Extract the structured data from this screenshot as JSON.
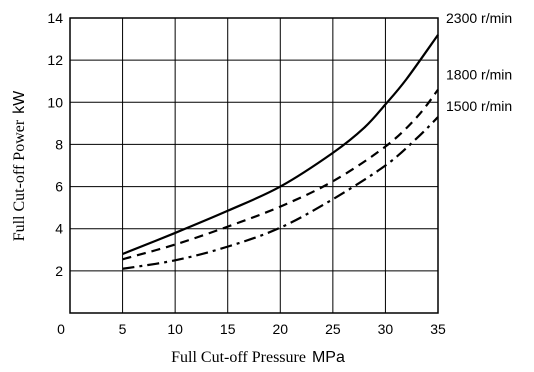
{
  "chart_data": {
    "type": "line",
    "title": "",
    "xlabel": "Full Cut-off  Pressure",
    "xlabel_unit": "MPa",
    "ylabel": "Full Cut-off Power",
    "ylabel_unit": "kW",
    "xlim": [
      0,
      35
    ],
    "ylim": [
      0,
      14
    ],
    "x_ticks": [
      0,
      5,
      10,
      15,
      20,
      25,
      30,
      35
    ],
    "y_ticks": [
      2,
      4,
      6,
      8,
      10,
      12,
      14
    ],
    "grid": true,
    "legend": "right-end-labels",
    "series": [
      {
        "name": "2300 r/min",
        "style": "solid",
        "x": [
          5,
          10,
          15,
          20,
          25,
          28,
          30,
          32,
          35
        ],
        "y": [
          2.8,
          3.8,
          4.85,
          6.0,
          7.6,
          8.8,
          9.9,
          11.1,
          13.2
        ]
      },
      {
        "name": "1800 r/min",
        "style": "dashed",
        "x": [
          5,
          10,
          15,
          20,
          25,
          30,
          33,
          35
        ],
        "y": [
          2.55,
          3.25,
          4.1,
          5.05,
          6.25,
          7.9,
          9.3,
          10.6
        ]
      },
      {
        "name": "1500 r/min",
        "style": "dashdot",
        "x": [
          5,
          10,
          15,
          20,
          25,
          30,
          33,
          35
        ],
        "y": [
          2.1,
          2.5,
          3.15,
          4.05,
          5.4,
          7.0,
          8.3,
          9.3
        ]
      }
    ]
  }
}
